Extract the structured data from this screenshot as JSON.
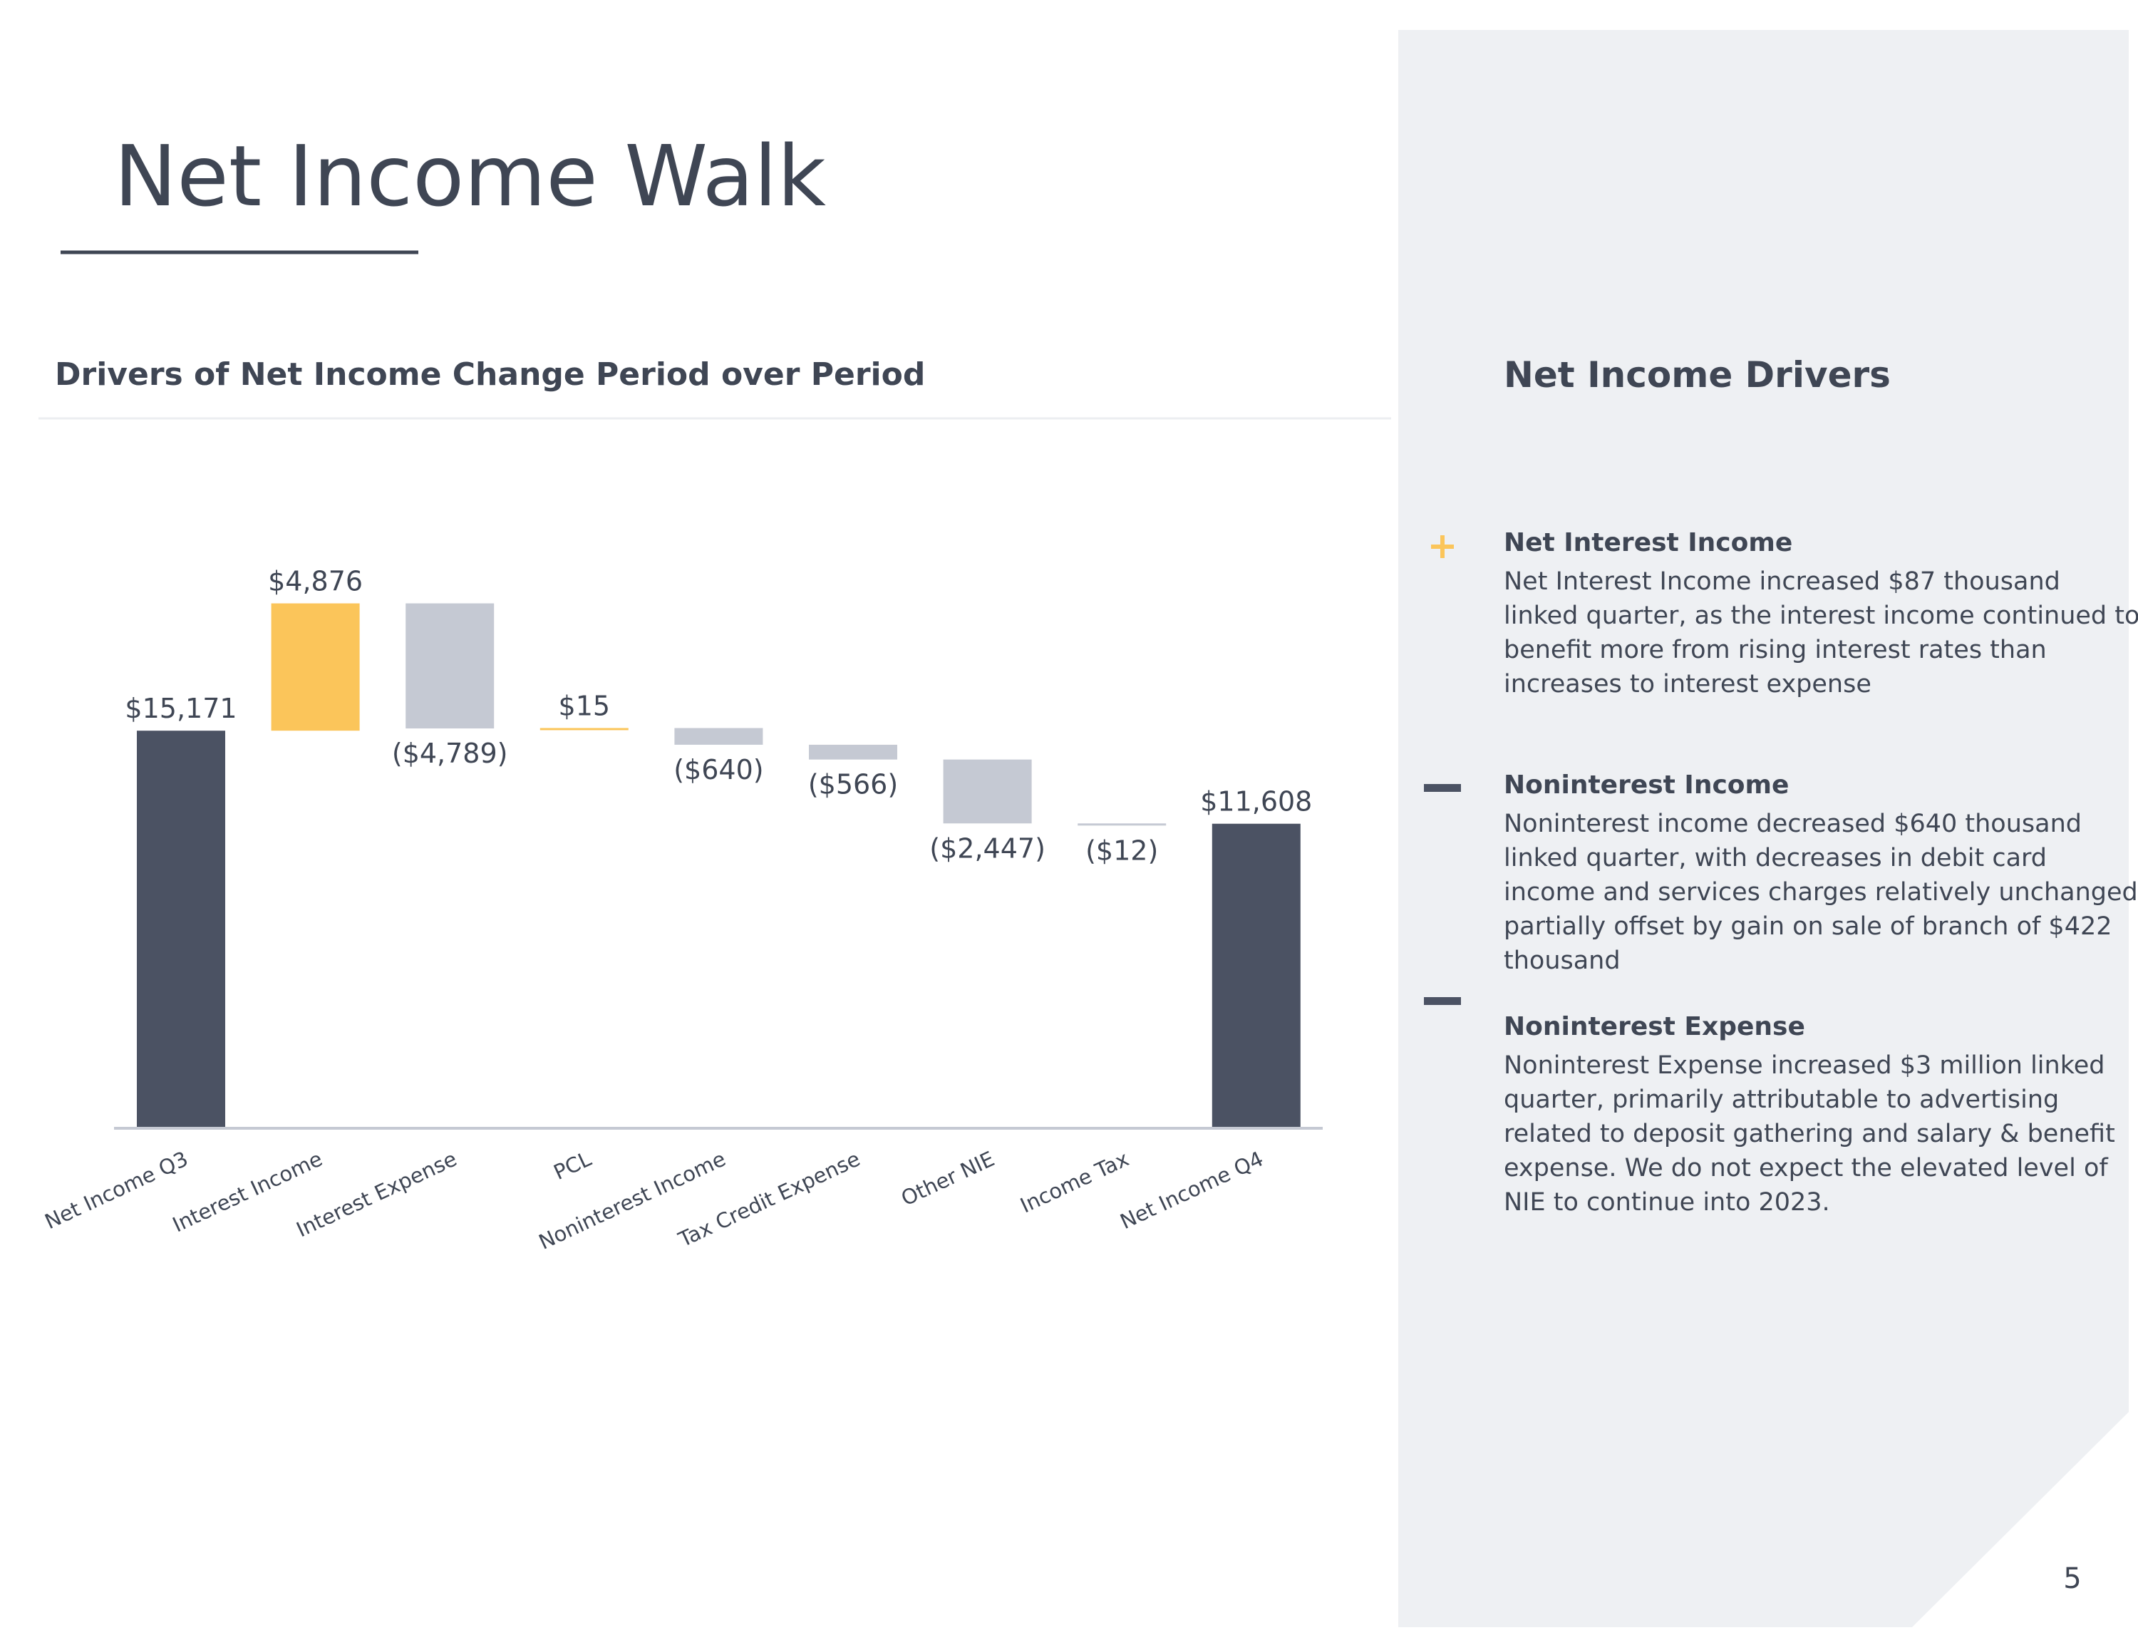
{
  "title": "Net Income Walk",
  "chart_data": {
    "type": "waterfall",
    "title": "Drivers of Net Income Change Period over Period",
    "categories": [
      "Net Income Q3",
      "Interest Income",
      "Interest Expense",
      "PCL",
      "Noninterest Income",
      "Tax Credit Expense",
      "Other NIE",
      "Income Tax",
      "Net Income Q4"
    ],
    "measure": [
      "total",
      "relative",
      "relative",
      "relative",
      "relative",
      "relative",
      "relative",
      "relative",
      "total"
    ],
    "values": [
      15171,
      4876,
      -4789,
      15,
      -640,
      -566,
      -2447,
      -12,
      11608
    ],
    "value_labels": [
      "$15,171",
      "$4,876",
      "($4,789)",
      "$15",
      "($640)",
      "($566)",
      "($2,447)",
      "($12)",
      "$11,608"
    ],
    "colors": {
      "total": "#4b5263",
      "increase": "#fbc55a",
      "decrease": "#c5c9d3"
    },
    "ylim": [
      0,
      22000
    ]
  },
  "sidebar": {
    "title": "Net Income Drivers",
    "items": [
      {
        "icon": "+",
        "heading": "Net Interest Income",
        "body": [
          "Net Interest Income increased $87 thousand",
          "linked quarter, as the interest income continued to",
          "benefit more from rising interest rates than",
          "increases to interest expense"
        ]
      },
      {
        "icon": "-",
        "heading": "Noninterest Income",
        "body": [
          "Noninterest income decreased $640 thousand",
          "linked quarter, with decreases in debit card",
          "income and services charges relatively unchanged,",
          "partially offset by gain on sale of branch of $422",
          "thousand"
        ]
      },
      {
        "icon": "-",
        "heading": "Noninterest Expense",
        "body": [
          "Noninterest Expense increased $3 million linked",
          "quarter, primarily attributable to advertising",
          "related to deposit gathering and salary & benefit",
          "expense. We do not expect the elevated level of",
          "NIE to continue into 2023."
        ]
      }
    ]
  },
  "page_number": "5"
}
